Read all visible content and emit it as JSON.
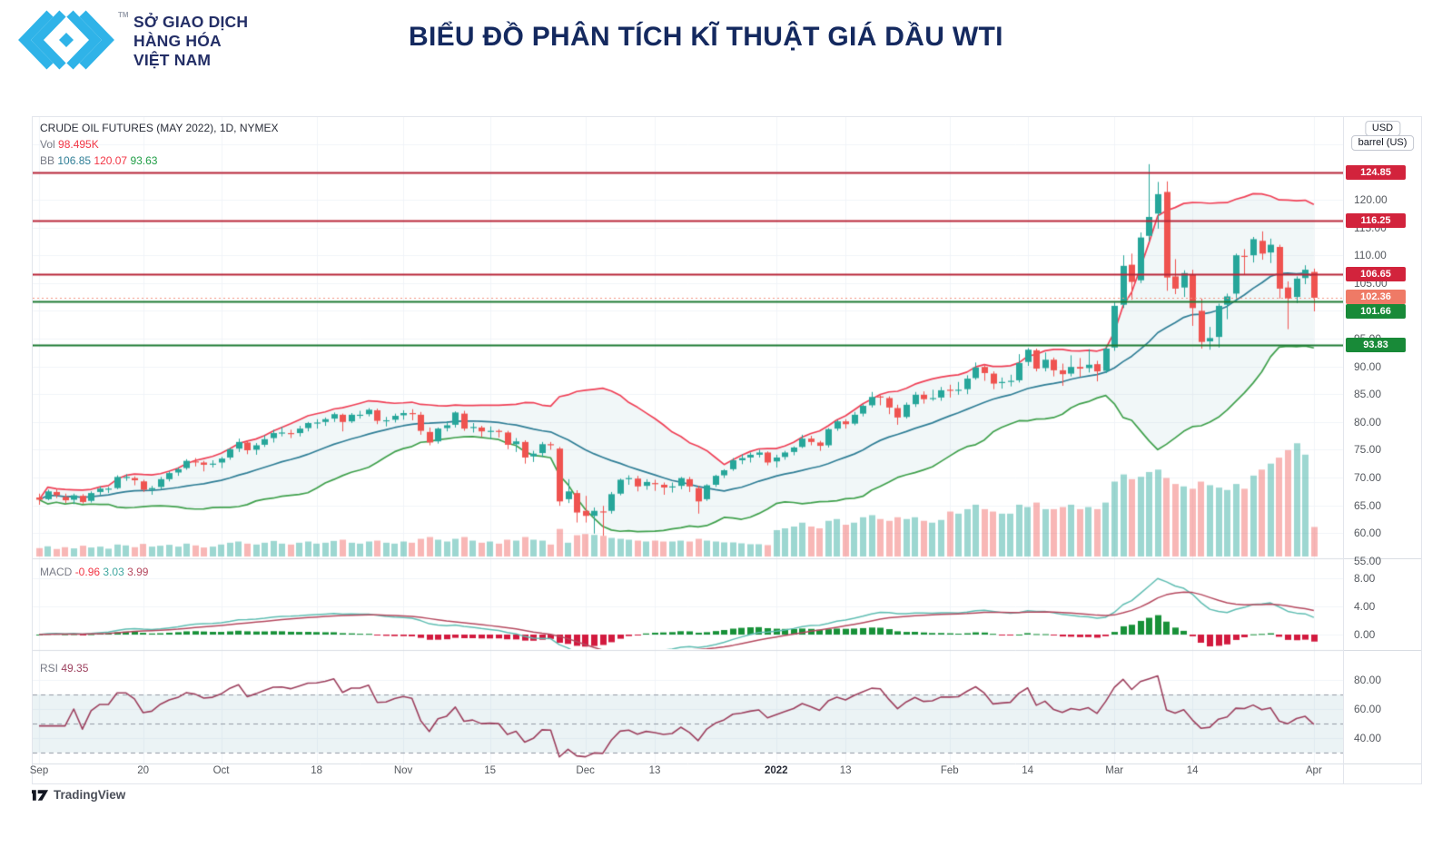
{
  "header": {
    "company_lines": [
      "SỞ GIAO DỊCH",
      "HÀNG HÓA",
      "VIỆT NAM"
    ],
    "tm": "TM",
    "title": "BIỂU ĐỒ PHÂN TÍCH KĨ THUẬT GIÁ DẦU WTI",
    "brand_color": "#2fb3e8",
    "navy": "#232e66"
  },
  "legend": {
    "symbol": "CRUDE OIL FUTURES (MAY 2022), 1D, NYMEX",
    "vol_label": "Vol",
    "vol_value": "98.495K",
    "bb_label": "BB",
    "bb_basis": "106.85",
    "bb_upper": "120.07",
    "bb_lower": "93.63"
  },
  "macd_legend": {
    "label": "MACD",
    "hist": "-0.96",
    "macd": "3.03",
    "signal": "3.99"
  },
  "rsi_legend": {
    "label": "RSI",
    "value": "49.35"
  },
  "unit_buttons": {
    "currency": "USD",
    "unit": "barrel (US)"
  },
  "footer": {
    "brand": "TradingView"
  },
  "colors": {
    "up": "#26a69a",
    "down": "#ef5350",
    "vol_up": "rgba(38,166,154,0.45)",
    "vol_down": "rgba(239,83,80,0.42)",
    "bb_upper": "#ef4056",
    "bb_basis": "#2f7e96",
    "bb_lower": "#3fa04c",
    "bb_fill": "rgba(60,140,150,0.07)",
    "grid": "#f1f4f8",
    "sep": "#d9dde3",
    "macd_line": "#5fbdb2",
    "macd_signal": "#b5495f",
    "hist_pos": "#179138",
    "hist_neg": "#d2193e",
    "rsi_line": "#9c3f5d",
    "rsi_band_fill": "rgba(130,180,190,0.16)",
    "rsi_dash": "#9298a3",
    "vol_value_color": "#f23645",
    "macd_hist_color": "#f23645"
  },
  "chart_data": {
    "type": "candlestick",
    "title": "CRUDE OIL FUTURES (MAY 2022), 1D, NYMEX",
    "panes": [
      "price+bollinger+volume",
      "macd(12,26,9)",
      "rsi(14)"
    ],
    "price_axis": {
      "labels": [
        {
          "v": 120,
          "t": "120.00"
        },
        {
          "v": 115,
          "t": "115.00"
        },
        {
          "v": 110,
          "t": "110.00"
        },
        {
          "v": 105,
          "t": "105.00"
        },
        {
          "v": 100,
          "t": "100.00"
        },
        {
          "v": 95,
          "t": "95.00"
        },
        {
          "v": 90,
          "t": "90.00"
        },
        {
          "v": 85,
          "t": "85.00"
        },
        {
          "v": 80,
          "t": "80.00"
        },
        {
          "v": 75,
          "t": "75.00"
        },
        {
          "v": 70,
          "t": "70.00"
        },
        {
          "v": 65,
          "t": "65.00"
        },
        {
          "v": 60,
          "t": "60.00"
        },
        {
          "v": 55,
          "t": "55.00"
        }
      ]
    },
    "macd_axis": [
      {
        "v": 8,
        "t": "8.00"
      },
      {
        "v": 4,
        "t": "4.00"
      },
      {
        "v": 0,
        "t": "0.00"
      }
    ],
    "rsi_axis": [
      {
        "v": 80,
        "t": "80.00"
      },
      {
        "v": 60,
        "t": "60.00"
      },
      {
        "v": 40,
        "t": "40.00"
      }
    ],
    "rsi_bands": [
      70,
      50,
      30
    ],
    "levels": [
      {
        "value": 124.85,
        "label": "124.85",
        "line": "#b82639",
        "badge": "#d2233c",
        "style": "solid",
        "badge_dy": 0
      },
      {
        "value": 116.25,
        "label": "116.25",
        "line": "#b82639",
        "badge": "#d2233c",
        "style": "solid",
        "badge_dy": 0
      },
      {
        "value": 106.65,
        "label": "106.65",
        "line": "#b82639",
        "badge": "#d2233c",
        "style": "solid",
        "badge_dy": 0
      },
      {
        "value": 102.36,
        "label": "102.36",
        "line": "#f0927f",
        "badge": "#ef7a66",
        "style": "dotted",
        "badge_dy": -1,
        "last_price": true
      },
      {
        "value": 101.66,
        "label": "101.66",
        "line": "#1d7a33",
        "badge": "#188a38",
        "style": "solid",
        "badge_dy": 11
      },
      {
        "value": 93.83,
        "label": "93.83",
        "line": "#1d7a33",
        "badge": "#188a38",
        "style": "solid",
        "badge_dy": 0
      }
    ],
    "x_ticks": [
      {
        "i": 0,
        "label": "Sep"
      },
      {
        "i": 12,
        "label": "20"
      },
      {
        "i": 21,
        "label": "Oct"
      },
      {
        "i": 32,
        "label": "18"
      },
      {
        "i": 42,
        "label": "Nov"
      },
      {
        "i": 52,
        "label": "15"
      },
      {
        "i": 63,
        "label": "Dec"
      },
      {
        "i": 71,
        "label": "13"
      },
      {
        "i": 85,
        "label": "2022",
        "bold": true
      },
      {
        "i": 93,
        "label": "13"
      },
      {
        "i": 105,
        "label": "Feb"
      },
      {
        "i": 114,
        "label": "14"
      },
      {
        "i": 124,
        "label": "Mar"
      },
      {
        "i": 133,
        "label": "14"
      },
      {
        "i": 147,
        "label": "Apr"
      }
    ],
    "volume_unit": "K",
    "candles_format": [
      "open",
      "high",
      "low",
      "close",
      "volume_K"
    ],
    "candles": [
      [
        66.4,
        67.1,
        65.1,
        66.0,
        28
      ],
      [
        66.1,
        67.8,
        65.9,
        67.5,
        34
      ],
      [
        67.4,
        68.0,
        66.3,
        66.8,
        25
      ],
      [
        66.5,
        67.1,
        65.4,
        65.9,
        31
      ],
      [
        66.0,
        67.1,
        65.2,
        66.8,
        27
      ],
      [
        66.7,
        67.0,
        65.3,
        65.6,
        36
      ],
      [
        65.8,
        67.5,
        65.5,
        67.2,
        30
      ],
      [
        67.4,
        68.4,
        66.9,
        68.0,
        33
      ],
      [
        67.9,
        68.3,
        67.2,
        68.0,
        26
      ],
      [
        68.1,
        70.4,
        67.9,
        70.1,
        40
      ],
      [
        70.0,
        70.6,
        69.4,
        70.1,
        37
      ],
      [
        69.9,
        70.2,
        68.6,
        69.5,
        31
      ],
      [
        69.3,
        69.6,
        67.4,
        67.8,
        42
      ],
      [
        67.8,
        68.5,
        66.9,
        68.1,
        33
      ],
      [
        68.3,
        70.1,
        67.8,
        69.7,
        36
      ],
      [
        69.7,
        71.1,
        69.3,
        70.8,
        39
      ],
      [
        70.9,
        71.8,
        70.3,
        71.5,
        33
      ],
      [
        71.7,
        73.3,
        71.4,
        73.0,
        43
      ],
      [
        72.9,
        73.5,
        72.0,
        72.8,
        37
      ],
      [
        72.7,
        73.0,
        71.1,
        72.3,
        30
      ],
      [
        72.4,
        73.1,
        71.8,
        72.5,
        33
      ],
      [
        72.7,
        73.7,
        71.7,
        73.4,
        40
      ],
      [
        73.6,
        75.4,
        73.2,
        75.1,
        46
      ],
      [
        75.2,
        77.0,
        74.6,
        76.4,
        50
      ],
      [
        76.3,
        76.7,
        74.2,
        74.9,
        43
      ],
      [
        75.0,
        76.2,
        74.1,
        75.8,
        40
      ],
      [
        75.9,
        77.6,
        75.5,
        76.9,
        46
      ],
      [
        77.1,
        78.6,
        76.3,
        78.0,
        52
      ],
      [
        78.1,
        79.1,
        77.4,
        78.1,
        43
      ],
      [
        78.0,
        78.6,
        77.1,
        77.9,
        40
      ],
      [
        78.0,
        79.3,
        77.4,
        78.8,
        46
      ],
      [
        78.9,
        80.0,
        78.3,
        79.8,
        50
      ],
      [
        79.8,
        80.5,
        78.8,
        79.9,
        43
      ],
      [
        80.0,
        80.8,
        79.3,
        80.5,
        46
      ],
      [
        80.6,
        81.7,
        80.0,
        81.4,
        52
      ],
      [
        81.3,
        81.5,
        78.3,
        80.0,
        56
      ],
      [
        80.1,
        81.6,
        79.8,
        81.3,
        46
      ],
      [
        81.3,
        82.0,
        80.6,
        81.3,
        43
      ],
      [
        81.4,
        82.5,
        81.0,
        82.2,
        50
      ],
      [
        82.1,
        82.4,
        79.6,
        80.2,
        53
      ],
      [
        80.2,
        80.9,
        79.2,
        80.3,
        46
      ],
      [
        80.4,
        81.5,
        79.9,
        81.1,
        43
      ],
      [
        81.2,
        82.1,
        80.4,
        81.6,
        50
      ],
      [
        81.6,
        82.3,
        80.3,
        81.4,
        46
      ],
      [
        81.3,
        81.8,
        77.7,
        78.4,
        59
      ],
      [
        78.2,
        79.0,
        75.8,
        76.3,
        65
      ],
      [
        76.5,
        79.0,
        76.1,
        78.8,
        56
      ],
      [
        78.9,
        80.1,
        78.3,
        79.4,
        50
      ],
      [
        79.5,
        81.9,
        79.0,
        81.7,
        59
      ],
      [
        81.5,
        82.0,
        78.4,
        78.8,
        65
      ],
      [
        78.9,
        79.8,
        78.1,
        79.1,
        53
      ],
      [
        79.0,
        79.3,
        77.3,
        78.3,
        46
      ],
      [
        78.4,
        79.2,
        76.9,
        78.4,
        50
      ],
      [
        78.4,
        78.7,
        77.2,
        78.3,
        43
      ],
      [
        78.1,
        78.4,
        75.1,
        75.9,
        56
      ],
      [
        76.0,
        77.1,
        74.6,
        76.5,
        53
      ],
      [
        76.4,
        76.7,
        72.5,
        73.6,
        65
      ],
      [
        73.8,
        74.8,
        72.8,
        74.3,
        56
      ],
      [
        74.4,
        76.4,
        73.7,
        76.0,
        53
      ],
      [
        76.0,
        76.4,
        75.0,
        75.9,
        40
      ],
      [
        75.2,
        75.5,
        64.9,
        65.7,
        92
      ],
      [
        66.1,
        69.7,
        65.4,
        67.5,
        46
      ],
      [
        67.2,
        67.7,
        61.9,
        63.7,
        71
      ],
      [
        64.0,
        66.7,
        61.9,
        63.1,
        75
      ],
      [
        63.1,
        64.6,
        59.9,
        64.0,
        72
      ],
      [
        63.9,
        64.9,
        59.5,
        63.8,
        69
      ],
      [
        64.0,
        67.4,
        63.5,
        67.0,
        62
      ],
      [
        67.1,
        69.8,
        66.8,
        69.6,
        59
      ],
      [
        69.7,
        70.4,
        68.7,
        69.9,
        56
      ],
      [
        69.8,
        70.3,
        67.5,
        68.4,
        53
      ],
      [
        68.5,
        69.7,
        67.8,
        69.2,
        50
      ],
      [
        69.0,
        69.6,
        67.6,
        68.8,
        53
      ],
      [
        68.7,
        69.1,
        66.9,
        68.2,
        50
      ],
      [
        68.3,
        69.1,
        67.3,
        68.4,
        50
      ],
      [
        68.5,
        70.1,
        67.9,
        69.9,
        53
      ],
      [
        69.7,
        70.1,
        67.4,
        68.4,
        50
      ],
      [
        68.1,
        68.5,
        63.5,
        65.7,
        59
      ],
      [
        66.1,
        68.8,
        65.8,
        68.6,
        53
      ],
      [
        68.7,
        70.5,
        68.3,
        70.3,
        50
      ],
      [
        70.4,
        71.5,
        69.9,
        71.3,
        47
      ],
      [
        71.5,
        73.5,
        71.2,
        73.1,
        47
      ],
      [
        73.1,
        74.2,
        72.4,
        73.5,
        44
      ],
      [
        73.6,
        74.5,
        72.7,
        74.1,
        41
      ],
      [
        74.1,
        75.0,
        73.6,
        74.5,
        41
      ],
      [
        74.5,
        74.7,
        72.2,
        72.7,
        38
      ],
      [
        72.9,
        74.1,
        71.8,
        73.6,
        88
      ],
      [
        73.7,
        74.8,
        73.2,
        74.5,
        94
      ],
      [
        74.6,
        75.6,
        74.0,
        75.4,
        100
      ],
      [
        75.5,
        77.7,
        75.3,
        77.0,
        113
      ],
      [
        77.0,
        77.5,
        75.8,
        76.4,
        100
      ],
      [
        76.3,
        76.6,
        74.8,
        75.7,
        94
      ],
      [
        75.8,
        78.9,
        75.4,
        78.7,
        119
      ],
      [
        78.8,
        80.4,
        78.4,
        80.1,
        125
      ],
      [
        80.1,
        80.5,
        78.8,
        79.6,
        106
      ],
      [
        79.7,
        81.8,
        79.4,
        81.3,
        113
      ],
      [
        81.5,
        83.2,
        81.0,
        82.9,
        131
      ],
      [
        83.0,
        85.4,
        82.6,
        84.5,
        138
      ],
      [
        84.6,
        84.8,
        83.0,
        84.4,
        125
      ],
      [
        84.3,
        84.6,
        81.4,
        82.6,
        119
      ],
      [
        82.5,
        83.1,
        79.5,
        80.8,
        131
      ],
      [
        80.9,
        83.5,
        80.6,
        83.1,
        125
      ],
      [
        83.2,
        85.4,
        82.7,
        84.9,
        131
      ],
      [
        84.9,
        85.5,
        83.3,
        84.1,
        119
      ],
      [
        84.2,
        85.8,
        83.8,
        84.3,
        113
      ],
      [
        84.4,
        86.3,
        83.8,
        85.7,
        122
      ],
      [
        85.8,
        86.7,
        84.4,
        85.7,
        150
      ],
      [
        85.8,
        87.2,
        84.9,
        85.8,
        143
      ],
      [
        85.9,
        88.4,
        85.0,
        87.8,
        158
      ],
      [
        87.9,
        90.7,
        87.6,
        89.8,
        173
      ],
      [
        89.9,
        90.2,
        87.4,
        88.8,
        158
      ],
      [
        88.7,
        89.1,
        85.9,
        86.9,
        150
      ],
      [
        87.0,
        88.0,
        86.0,
        87.2,
        143
      ],
      [
        87.3,
        88.5,
        86.4,
        87.4,
        143
      ],
      [
        87.5,
        92.2,
        87.1,
        90.6,
        173
      ],
      [
        90.8,
        93.3,
        90.1,
        93.0,
        165
      ],
      [
        92.9,
        93.2,
        89.1,
        89.6,
        180
      ],
      [
        89.7,
        92.5,
        89.1,
        91.2,
        158
      ],
      [
        91.2,
        91.6,
        88.2,
        89.3,
        158
      ],
      [
        89.3,
        90.5,
        86.5,
        88.6,
        165
      ],
      [
        88.7,
        92.0,
        88.2,
        89.9,
        173
      ],
      [
        89.9,
        91.5,
        88.1,
        89.6,
        158
      ],
      [
        89.7,
        93.1,
        88.9,
        90.3,
        165
      ],
      [
        90.4,
        91.0,
        87.3,
        89.1,
        158
      ],
      [
        89.2,
        93.5,
        88.8,
        93.2,
        180
      ],
      [
        93.4,
        101.5,
        92.8,
        100.9,
        250
      ],
      [
        101.1,
        110.0,
        100.5,
        108.1,
        274
      ],
      [
        108.3,
        110.3,
        102.0,
        105.2,
        258
      ],
      [
        105.5,
        114.1,
        105.0,
        113.2,
        266
      ],
      [
        113.5,
        126.4,
        112.5,
        116.9,
        282
      ],
      [
        117.5,
        123.2,
        114.8,
        121.0,
        290
      ],
      [
        121.4,
        123.3,
        103.6,
        106.0,
        262
      ],
      [
        106.2,
        109.3,
        103.0,
        104.0,
        242
      ],
      [
        104.2,
        107.3,
        102.5,
        106.8,
        234
      ],
      [
        106.5,
        107.4,
        97.3,
        100.5,
        226
      ],
      [
        100.0,
        102.2,
        93.2,
        94.4,
        250
      ],
      [
        94.5,
        97.1,
        93.0,
        95.1,
        238
      ],
      [
        95.3,
        101.3,
        93.4,
        100.9,
        230
      ],
      [
        101.1,
        103.1,
        98.5,
        102.6,
        222
      ],
      [
        103.1,
        110.3,
        101.6,
        110.0,
        242
      ],
      [
        109.9,
        111.1,
        106.6,
        109.8,
        226
      ],
      [
        110.0,
        113.3,
        108.7,
        112.9,
        270
      ],
      [
        112.6,
        114.3,
        109.2,
        110.3,
        290
      ],
      [
        110.5,
        113.0,
        108.6,
        111.9,
        310
      ],
      [
        111.5,
        111.9,
        102.2,
        104.0,
        330
      ],
      [
        104.2,
        105.3,
        96.7,
        102.2,
        355
      ],
      [
        102.5,
        106.2,
        101.4,
        105.8,
        378
      ],
      [
        105.9,
        108.2,
        104.8,
        107.4,
        340
      ],
      [
        107.0,
        107.6,
        99.9,
        102.36,
        98.5
      ]
    ],
    "indicators": {
      "bollinger": {
        "period": 20,
        "stdev": 2
      },
      "macd": [
        12,
        26,
        9
      ],
      "rsi_period": 14
    }
  }
}
